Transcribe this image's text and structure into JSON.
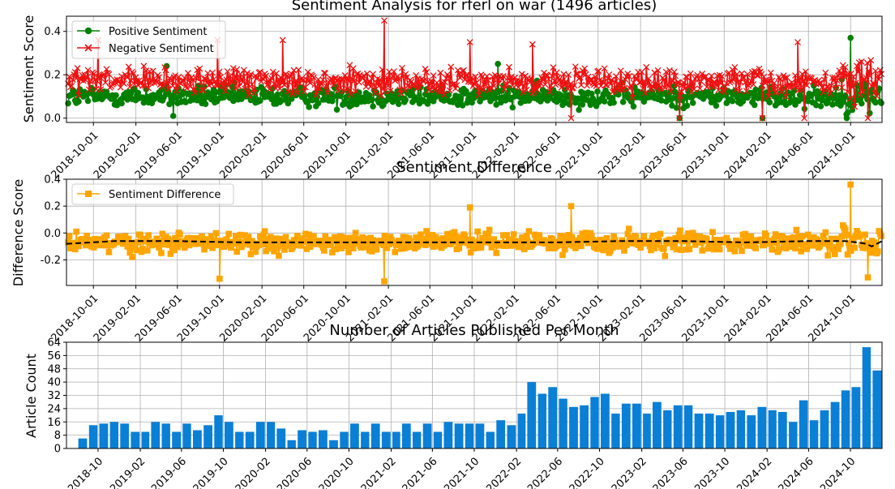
{
  "chart_data": [
    {
      "type": "line",
      "title": "Sentiment Analysis for rferl on war (1496 articles)",
      "xlabel": "",
      "ylabel": "Sentiment Score",
      "ylim": [
        -0.02,
        0.47
      ],
      "yticks": [
        0.0,
        0.2,
        0.4
      ],
      "xlim": [
        "2018-07-15",
        "2024-12-31"
      ],
      "xticks": [
        "2018-10-01",
        "2019-02-01",
        "2019-06-01",
        "2019-10-01",
        "2020-02-01",
        "2020-06-01",
        "2020-10-01",
        "2021-02-01",
        "2021-06-01",
        "2021-10-01",
        "2022-02-01",
        "2022-06-01",
        "2022-10-01",
        "2023-02-01",
        "2023-06-01",
        "2023-10-01",
        "2024-02-01",
        "2024-06-01",
        "2024-10-01"
      ],
      "grid": true,
      "legend": "top-left",
      "series": [
        {
          "name": "Positive Sentiment",
          "color": "#008000",
          "marker": "circle",
          "typical": 0.1,
          "spread": 0.045,
          "notable": [
            [
              "2019-05-20",
              0.01
            ],
            [
              "2023-05-25",
              0.0
            ],
            [
              "2024-01-20",
              0.0
            ],
            [
              "2024-09-20",
              0.0
            ],
            [
              "2024-10-01",
              0.37
            ],
            [
              "2021-12-15",
              0.25
            ],
            [
              "2019-05-01",
              0.24
            ]
          ]
        },
        {
          "name": "Negative Sentiment",
          "color": "#ee1111",
          "marker": "x",
          "typical": 0.17,
          "spread": 0.055,
          "notable": [
            [
              "2021-01-20",
              0.45
            ],
            [
              "2018-10-15",
              0.36
            ],
            [
              "2019-09-25",
              0.36
            ],
            [
              "2020-04-01",
              0.36
            ],
            [
              "2021-09-25",
              0.35
            ],
            [
              "2022-03-25",
              0.34
            ],
            [
              "2024-05-01",
              0.35
            ],
            [
              "2022-07-15",
              0.0
            ],
            [
              "2024-05-20",
              0.0
            ],
            [
              "2024-11-20",
              0.0
            ],
            [
              "2023-05-25",
              0.0
            ],
            [
              "2024-01-20",
              0.0
            ]
          ]
        }
      ]
    },
    {
      "type": "line",
      "title": "Sentiment Difference",
      "xlabel": "",
      "ylabel": "Difference Score",
      "ylim": [
        -0.39,
        0.4
      ],
      "yticks": [
        -0.2,
        0.0,
        0.2,
        0.4
      ],
      "xlim": [
        "2018-07-15",
        "2024-12-31"
      ],
      "xticks": [
        "2018-10-01",
        "2019-02-01",
        "2019-06-01",
        "2019-10-01",
        "2020-02-01",
        "2020-06-01",
        "2020-10-01",
        "2021-02-01",
        "2021-06-01",
        "2021-10-01",
        "2022-02-01",
        "2022-06-01",
        "2022-10-01",
        "2023-02-01",
        "2023-06-01",
        "2023-10-01",
        "2024-02-01",
        "2024-06-01",
        "2024-10-01"
      ],
      "grid": true,
      "legend": "top-left",
      "series": [
        {
          "name": "Sentiment Difference",
          "color": "#ffa500",
          "marker": "square",
          "typical": -0.07,
          "spread": 0.07,
          "notable": [
            [
              "2019-10-01",
              -0.34
            ],
            [
              "2021-01-20",
              -0.36
            ],
            [
              "2024-10-01",
              0.36
            ],
            [
              "2022-07-15",
              0.2
            ],
            [
              "2021-09-25",
              0.19
            ],
            [
              "2024-11-20",
              -0.33
            ]
          ]
        },
        {
          "name": "",
          "color": "#000000",
          "style": "dashed",
          "x": [
            "2018-07-15",
            "2018-12-01",
            "2019-06-01",
            "2019-12-01",
            "2020-06-01",
            "2020-12-01",
            "2021-06-01",
            "2021-12-01",
            "2022-06-01",
            "2022-12-01",
            "2023-06-01",
            "2023-12-01",
            "2024-06-01",
            "2024-09-15",
            "2024-10-20",
            "2024-11-15",
            "2024-12-01",
            "2024-12-31"
          ],
          "y": [
            -0.08,
            -0.06,
            -0.06,
            -0.07,
            -0.07,
            -0.07,
            -0.07,
            -0.07,
            -0.07,
            -0.06,
            -0.06,
            -0.07,
            -0.06,
            -0.06,
            -0.07,
            -0.08,
            -0.1,
            -0.06
          ]
        }
      ]
    },
    {
      "type": "bar",
      "title": "Number of Articles Published Per Month",
      "xlabel": "",
      "ylabel": "Article Count",
      "ylim": [
        0,
        64
      ],
      "yticks": [
        0,
        8,
        16,
        24,
        32,
        40,
        48,
        56,
        64
      ],
      "xticks": [
        "2018-10",
        "2019-02",
        "2019-06",
        "2019-10",
        "2020-02",
        "2020-06",
        "2020-10",
        "2021-02",
        "2021-06",
        "2021-10",
        "2022-02",
        "2022-06",
        "2022-10",
        "2023-02",
        "2023-06",
        "2023-10",
        "2024-02",
        "2024-06",
        "2024-10"
      ],
      "grid": true,
      "color": "#0a7fd6",
      "categories": [
        "2018-08",
        "2018-09",
        "2018-10",
        "2018-11",
        "2018-12",
        "2019-01",
        "2019-02",
        "2019-03",
        "2019-04",
        "2019-05",
        "2019-06",
        "2019-07",
        "2019-08",
        "2019-09",
        "2019-10",
        "2019-11",
        "2019-12",
        "2020-01",
        "2020-02",
        "2020-03",
        "2020-04",
        "2020-05",
        "2020-06",
        "2020-07",
        "2020-08",
        "2020-09",
        "2020-10",
        "2020-11",
        "2020-12",
        "2021-01",
        "2021-02",
        "2021-03",
        "2021-04",
        "2021-05",
        "2021-06",
        "2021-07",
        "2021-08",
        "2021-09",
        "2021-10",
        "2021-11",
        "2021-12",
        "2022-01",
        "2022-02",
        "2022-03",
        "2022-04",
        "2022-05",
        "2022-06",
        "2022-07",
        "2022-08",
        "2022-09",
        "2022-10",
        "2022-11",
        "2022-12",
        "2023-01",
        "2023-02",
        "2023-03",
        "2023-04",
        "2023-05",
        "2023-06",
        "2023-07",
        "2023-08",
        "2023-09",
        "2023-10",
        "2023-11",
        "2023-12",
        "2024-01",
        "2024-02",
        "2024-03",
        "2024-04",
        "2024-05",
        "2024-06",
        "2024-07",
        "2024-08",
        "2024-09",
        "2024-10",
        "2024-11",
        "2024-12"
      ],
      "values": [
        6,
        14,
        15,
        16,
        15,
        10,
        10,
        16,
        15,
        10,
        15,
        11,
        14,
        20,
        16,
        10,
        10,
        16,
        16,
        12,
        5,
        11,
        10,
        11,
        5,
        10,
        15,
        10,
        15,
        10,
        10,
        15,
        10,
        15,
        10,
        16,
        15,
        15,
        15,
        10,
        17,
        14,
        21,
        40,
        33,
        37,
        30,
        25,
        26,
        31,
        33,
        21,
        27,
        27,
        21,
        28,
        23,
        26,
        26,
        21,
        21,
        20,
        22,
        23,
        20,
        25,
        23,
        22,
        16,
        29,
        17,
        23,
        28,
        35,
        37,
        61,
        47
      ]
    }
  ]
}
